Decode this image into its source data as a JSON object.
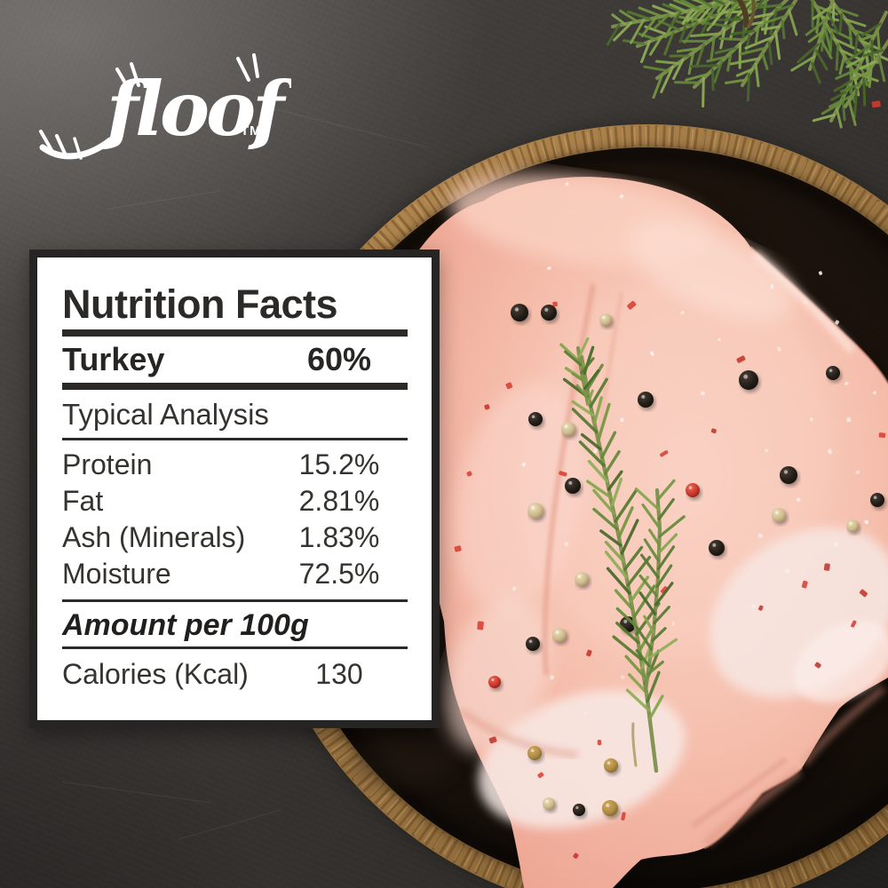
{
  "brand": {
    "logo_text": "floof",
    "trademark": "TM"
  },
  "nutrition_panel": {
    "title": "Nutrition Facts",
    "ingredient": {
      "label": "Turkey",
      "value": "60%"
    },
    "section_heading": "Typical Analysis",
    "analysis_rows": [
      {
        "label": "Protein",
        "value": "15.2%"
      },
      {
        "label": "Fat",
        "value": "2.81%"
      },
      {
        "label": "Ash (Minerals)",
        "value": "1.83%"
      },
      {
        "label": "Moisture",
        "value": "72.5%"
      }
    ],
    "amount_heading": "Amount per 100g",
    "calories_row": {
      "label": "Calories (Kcal)",
      "value": "130"
    }
  },
  "colors": {
    "background_dark": "#34312e",
    "panel_background": "#ffffff",
    "panel_border": "#262524",
    "panel_text": "#2c2b2a",
    "logo_white": "#ffffff",
    "meat_pink": "#f4bcab",
    "wood_rim": "#a97e48",
    "plate_interior": "#17100a",
    "rosemary_green": "#648a3a",
    "peppercorn_black": "#241e18",
    "peppercorn_red": "#cf3b2f",
    "peppercorn_cream": "#d9c9a1",
    "salt_white": "#f6f1ea"
  }
}
